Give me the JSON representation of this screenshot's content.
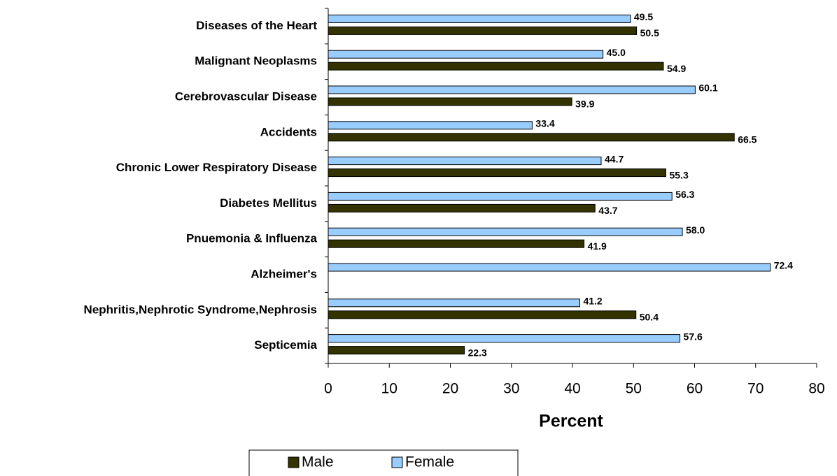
{
  "chart_data": {
    "type": "hbar",
    "xlabel": "Percent",
    "categories": [
      "Diseases of the Heart",
      "Malignant Neoplasms",
      "Cerebrovascular Disease",
      "Accidents",
      "Chronic Lower Respiratory Disease",
      "Diabetes Mellitus",
      "Pnuemonia & Influenza",
      "Alzheimer's",
      "Nephritis,Nephrotic Syndrome,Nephrosis",
      "Septicemia"
    ],
    "series": [
      {
        "name": "Female",
        "color": "#99ccff",
        "values": [
          49.5,
          45.0,
          60.1,
          33.4,
          44.7,
          56.3,
          58.0,
          72.4,
          41.2,
          57.6
        ],
        "value_labels": [
          "49.5",
          "45.0",
          "60.1",
          "33.4",
          "44.7",
          "56.3",
          "58.0",
          "72.4",
          "41.2",
          "57.6"
        ]
      },
      {
        "name": "Male",
        "color": "#333300",
        "values": [
          50.5,
          54.9,
          39.9,
          66.5,
          55.3,
          43.7,
          41.9,
          null,
          50.4,
          22.3
        ],
        "value_labels": [
          "50.5",
          "54.9",
          "39.9",
          "66.5",
          "55.3",
          "43.7",
          "41.9",
          null,
          "50.4",
          "22.3"
        ]
      }
    ],
    "xlim": [
      0,
      80
    ],
    "xticks": [
      0,
      10,
      20,
      30,
      40,
      50,
      60,
      70,
      80
    ],
    "legend": "bottom"
  }
}
